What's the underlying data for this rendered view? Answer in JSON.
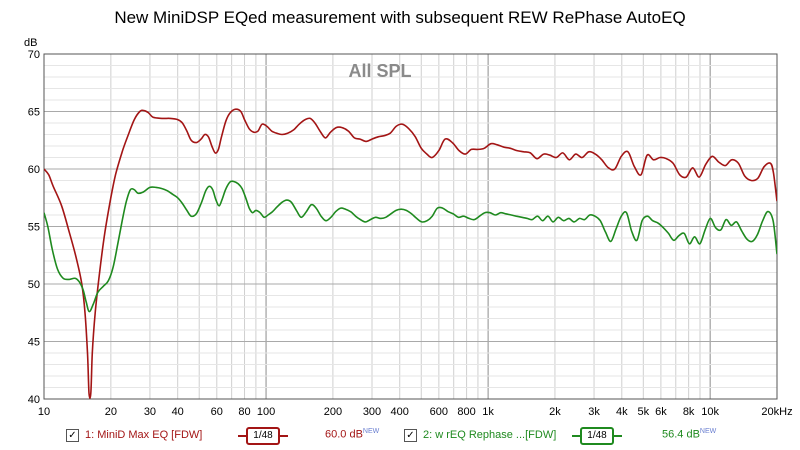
{
  "chart_data": {
    "type": "line",
    "title": "New MiniDSP EQed measurement with subsequent REW RePhase AutoEQ",
    "overlay_label": "All SPL",
    "ylabel": "dB",
    "xlabel": "",
    "x_scale": "log",
    "xlim": [
      10,
      20000
    ],
    "ylim": [
      40,
      70
    ],
    "grid": true,
    "x_tick_labels": [
      {
        "f": 10,
        "label": "10"
      },
      {
        "f": 20,
        "label": "20"
      },
      {
        "f": 30,
        "label": "30"
      },
      {
        "f": 40,
        "label": "40"
      },
      {
        "f": 60,
        "label": "60"
      },
      {
        "f": 80,
        "label": "80"
      },
      {
        "f": 100,
        "label": "100"
      },
      {
        "f": 200,
        "label": "200"
      },
      {
        "f": 300,
        "label": "300"
      },
      {
        "f": 400,
        "label": "400"
      },
      {
        "f": 600,
        "label": "600"
      },
      {
        "f": 800,
        "label": "800"
      },
      {
        "f": 1000,
        "label": "1k"
      },
      {
        "f": 2000,
        "label": "2k"
      },
      {
        "f": 3000,
        "label": "3k"
      },
      {
        "f": 4000,
        "label": "4k"
      },
      {
        "f": 5000,
        "label": "5k"
      },
      {
        "f": 6000,
        "label": "6k"
      },
      {
        "f": 8000,
        "label": "8k"
      },
      {
        "f": 10000,
        "label": "10k"
      },
      {
        "f": 20000,
        "label": "20kHz"
      }
    ],
    "y_ticks": [
      40,
      45,
      50,
      55,
      60,
      65,
      70
    ],
    "series": [
      {
        "name": "1: MiniD Max EQ [FDW]",
        "color": "#a31515",
        "legend_value": "60.0 dB",
        "points": [
          [
            10,
            60.0
          ],
          [
            10.5,
            59.5
          ],
          [
            11,
            58.5
          ],
          [
            12,
            56.8
          ],
          [
            13,
            54.5
          ],
          [
            14,
            52.2
          ],
          [
            14.8,
            50.0
          ],
          [
            15.3,
            47.5
          ],
          [
            15.7,
            44.0
          ],
          [
            15.95,
            40.5
          ],
          [
            16.25,
            40.5
          ],
          [
            16.5,
            44.0
          ],
          [
            17,
            47.5
          ],
          [
            17.8,
            51.0
          ],
          [
            18.8,
            54.5
          ],
          [
            20,
            57.5
          ],
          [
            21,
            59.5
          ],
          [
            22.5,
            61.5
          ],
          [
            24,
            63.0
          ],
          [
            25.5,
            64.3
          ],
          [
            27,
            65.0
          ],
          [
            28,
            65.1
          ],
          [
            29.5,
            64.9
          ],
          [
            31,
            64.5
          ],
          [
            34,
            64.4
          ],
          [
            37,
            64.4
          ],
          [
            40,
            64.3
          ],
          [
            42,
            64.0
          ],
          [
            44,
            63.3
          ],
          [
            46,
            62.5
          ],
          [
            48.5,
            62.3
          ],
          [
            51,
            62.6
          ],
          [
            53,
            63.0
          ],
          [
            55,
            62.8
          ],
          [
            57,
            62.0
          ],
          [
            59,
            61.4
          ],
          [
            61,
            61.7
          ],
          [
            63,
            62.8
          ],
          [
            66,
            64.2
          ],
          [
            69,
            64.9
          ],
          [
            73,
            65.2
          ],
          [
            77,
            65.0
          ],
          [
            80,
            64.3
          ],
          [
            84,
            63.5
          ],
          [
            88,
            63.2
          ],
          [
            92,
            63.3
          ],
          [
            96,
            63.9
          ],
          [
            101,
            63.7
          ],
          [
            106,
            63.3
          ],
          [
            112,
            63.1
          ],
          [
            118,
            63.0
          ],
          [
            125,
            63.1
          ],
          [
            133,
            63.4
          ],
          [
            141,
            63.9
          ],
          [
            150,
            64.3
          ],
          [
            158,
            64.4
          ],
          [
            166,
            64.0
          ],
          [
            175,
            63.3
          ],
          [
            185,
            62.7
          ],
          [
            195,
            63.2
          ],
          [
            207,
            63.6
          ],
          [
            220,
            63.6
          ],
          [
            235,
            63.3
          ],
          [
            250,
            62.7
          ],
          [
            265,
            62.6
          ],
          [
            282,
            62.4
          ],
          [
            300,
            62.6
          ],
          [
            320,
            62.8
          ],
          [
            340,
            62.9
          ],
          [
            362,
            63.1
          ],
          [
            385,
            63.7
          ],
          [
            410,
            63.9
          ],
          [
            440,
            63.5
          ],
          [
            470,
            62.8
          ],
          [
            500,
            61.8
          ],
          [
            530,
            61.3
          ],
          [
            560,
            61.0
          ],
          [
            600,
            61.6
          ],
          [
            640,
            62.6
          ],
          [
            690,
            62.3
          ],
          [
            740,
            61.6
          ],
          [
            790,
            61.3
          ],
          [
            840,
            61.7
          ],
          [
            900,
            61.7
          ],
          [
            960,
            61.8
          ],
          [
            1030,
            62.2
          ],
          [
            1100,
            62.1
          ],
          [
            1180,
            61.9
          ],
          [
            1260,
            61.8
          ],
          [
            1350,
            61.6
          ],
          [
            1450,
            61.5
          ],
          [
            1550,
            61.4
          ],
          [
            1660,
            60.9
          ],
          [
            1780,
            61.3
          ],
          [
            1900,
            61.2
          ],
          [
            2030,
            61.0
          ],
          [
            2170,
            61.4
          ],
          [
            2320,
            60.8
          ],
          [
            2480,
            61.3
          ],
          [
            2650,
            61.0
          ],
          [
            2840,
            61.5
          ],
          [
            3040,
            61.3
          ],
          [
            3250,
            60.8
          ],
          [
            3480,
            60.1
          ],
          [
            3720,
            60.0
          ],
          [
            3980,
            61.1
          ],
          [
            4260,
            61.5
          ],
          [
            4560,
            60.2
          ],
          [
            4880,
            59.5
          ],
          [
            5200,
            61.2
          ],
          [
            5560,
            60.8
          ],
          [
            5950,
            61.0
          ],
          [
            6360,
            60.9
          ],
          [
            6810,
            60.5
          ],
          [
            7290,
            59.5
          ],
          [
            7800,
            59.3
          ],
          [
            8340,
            60.1
          ],
          [
            8930,
            59.3
          ],
          [
            9550,
            60.4
          ],
          [
            10220,
            61.1
          ],
          [
            10940,
            60.6
          ],
          [
            11700,
            60.3
          ],
          [
            12500,
            60.8
          ],
          [
            13400,
            60.5
          ],
          [
            14300,
            59.4
          ],
          [
            15300,
            59.0
          ],
          [
            16400,
            59.2
          ],
          [
            17500,
            60.2
          ],
          [
            18700,
            60.5
          ],
          [
            19300,
            59.6
          ],
          [
            20000,
            57.2
          ]
        ]
      },
      {
        "name": "2: w rEQ Rephase ...[FDW]",
        "color": "#1f8a1f",
        "legend_value": "56.4 dB",
        "points": [
          [
            10,
            56.2
          ],
          [
            10.4,
            55.0
          ],
          [
            10.9,
            53.0
          ],
          [
            11.5,
            51.3
          ],
          [
            12.2,
            50.5
          ],
          [
            13,
            50.4
          ],
          [
            13.8,
            50.5
          ],
          [
            14.4,
            50.2
          ],
          [
            15,
            49.5
          ],
          [
            15.5,
            48.4
          ],
          [
            16,
            47.6
          ],
          [
            16.7,
            48.3
          ],
          [
            17.5,
            49.3
          ],
          [
            18.5,
            49.8
          ],
          [
            19.5,
            50.3
          ],
          [
            20.5,
            51.5
          ],
          [
            21.5,
            53.5
          ],
          [
            22.5,
            55.5
          ],
          [
            23.5,
            57.2
          ],
          [
            24.5,
            58.2
          ],
          [
            25.5,
            58.2
          ],
          [
            26.5,
            57.9
          ],
          [
            28,
            58.0
          ],
          [
            30,
            58.4
          ],
          [
            32,
            58.4
          ],
          [
            34,
            58.3
          ],
          [
            36,
            58.1
          ],
          [
            38,
            57.8
          ],
          [
            40,
            57.5
          ],
          [
            42,
            57.0
          ],
          [
            44,
            56.4
          ],
          [
            46,
            55.9
          ],
          [
            48.5,
            56.1
          ],
          [
            51,
            57.0
          ],
          [
            53.5,
            58.1
          ],
          [
            55.5,
            58.5
          ],
          [
            57.5,
            58.2
          ],
          [
            59.5,
            57.3
          ],
          [
            61.5,
            56.8
          ],
          [
            63.5,
            57.4
          ],
          [
            66,
            58.3
          ],
          [
            69,
            58.9
          ],
          [
            72,
            58.9
          ],
          [
            75,
            58.7
          ],
          [
            78,
            58.3
          ],
          [
            81,
            57.5
          ],
          [
            84,
            56.6
          ],
          [
            87,
            56.2
          ],
          [
            90,
            56.4
          ],
          [
            94,
            56.2
          ],
          [
            98,
            55.8
          ],
          [
            102,
            56.0
          ],
          [
            107,
            56.3
          ],
          [
            112,
            56.7
          ],
          [
            118,
            57.1
          ],
          [
            124,
            57.3
          ],
          [
            130,
            57.1
          ],
          [
            137,
            56.4
          ],
          [
            144,
            55.8
          ],
          [
            152,
            56.3
          ],
          [
            160,
            56.9
          ],
          [
            168,
            56.6
          ],
          [
            177,
            55.9
          ],
          [
            186,
            55.5
          ],
          [
            196,
            55.8
          ],
          [
            206,
            56.3
          ],
          [
            217,
            56.6
          ],
          [
            228,
            56.5
          ],
          [
            240,
            56.3
          ],
          [
            253,
            55.9
          ],
          [
            266,
            55.6
          ],
          [
            280,
            55.4
          ],
          [
            295,
            55.6
          ],
          [
            311,
            55.8
          ],
          [
            328,
            55.7
          ],
          [
            346,
            55.8
          ],
          [
            365,
            56.1
          ],
          [
            385,
            56.4
          ],
          [
            406,
            56.5
          ],
          [
            428,
            56.4
          ],
          [
            452,
            56.1
          ],
          [
            477,
            55.7
          ],
          [
            503,
            55.4
          ],
          [
            531,
            55.5
          ],
          [
            560,
            55.9
          ],
          [
            591,
            56.6
          ],
          [
            624,
            56.6
          ],
          [
            659,
            56.3
          ],
          [
            696,
            56.1
          ],
          [
            735,
            55.8
          ],
          [
            776,
            55.9
          ],
          [
            820,
            55.7
          ],
          [
            866,
            55.6
          ],
          [
            915,
            55.9
          ],
          [
            966,
            56.2
          ],
          [
            1020,
            56.2
          ],
          [
            1080,
            56.0
          ],
          [
            1140,
            56.2
          ],
          [
            1200,
            56.1
          ],
          [
            1270,
            56.0
          ],
          [
            1340,
            55.9
          ],
          [
            1420,
            55.8
          ],
          [
            1500,
            55.7
          ],
          [
            1580,
            55.6
          ],
          [
            1670,
            55.9
          ],
          [
            1760,
            55.5
          ],
          [
            1860,
            55.9
          ],
          [
            1960,
            55.4
          ],
          [
            2070,
            55.8
          ],
          [
            2190,
            55.5
          ],
          [
            2310,
            55.7
          ],
          [
            2440,
            55.4
          ],
          [
            2580,
            55.7
          ],
          [
            2720,
            55.6
          ],
          [
            2870,
            56.0
          ],
          [
            3030,
            55.9
          ],
          [
            3200,
            55.5
          ],
          [
            3380,
            54.5
          ],
          [
            3570,
            53.7
          ],
          [
            3770,
            54.8
          ],
          [
            3980,
            55.9
          ],
          [
            4200,
            56.2
          ],
          [
            4430,
            54.6
          ],
          [
            4680,
            53.8
          ],
          [
            4940,
            55.5
          ],
          [
            5220,
            55.9
          ],
          [
            5510,
            55.5
          ],
          [
            5820,
            55.3
          ],
          [
            6150,
            54.9
          ],
          [
            6490,
            54.4
          ],
          [
            6850,
            53.8
          ],
          [
            7230,
            54.2
          ],
          [
            7640,
            54.4
          ],
          [
            8060,
            53.5
          ],
          [
            8510,
            54.1
          ],
          [
            8990,
            53.5
          ],
          [
            9490,
            54.7
          ],
          [
            10020,
            55.7
          ],
          [
            10580,
            54.9
          ],
          [
            11170,
            54.7
          ],
          [
            11790,
            55.6
          ],
          [
            12450,
            55.1
          ],
          [
            13150,
            55.4
          ],
          [
            13880,
            54.6
          ],
          [
            14650,
            53.9
          ],
          [
            15470,
            53.7
          ],
          [
            16330,
            54.3
          ],
          [
            17240,
            55.5
          ],
          [
            18200,
            56.3
          ],
          [
            19200,
            55.5
          ],
          [
            20000,
            52.6
          ]
        ]
      }
    ]
  },
  "legend": {
    "items": [
      {
        "checked_glyph": "✓",
        "smoothing": "1/48",
        "value": "60.0 dB",
        "new_tag": "NEW"
      },
      {
        "checked_glyph": "✓",
        "smoothing": "1/48",
        "value": "56.4 dB",
        "new_tag": "NEW"
      }
    ]
  }
}
